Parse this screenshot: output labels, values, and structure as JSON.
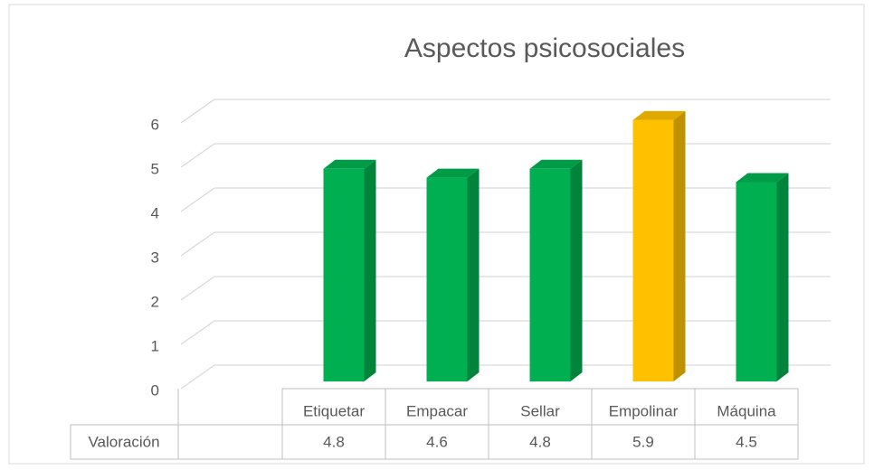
{
  "chart_data": {
    "type": "bar3d",
    "title": "Aspectos psicosociales",
    "categories": [
      "Etiquetar",
      "Empacar",
      "Sellar",
      "Empolinar",
      "Máquina"
    ],
    "series": [
      {
        "name": "Valoración",
        "values": [
          4.8,
          4.6,
          4.8,
          5.9,
          4.5
        ],
        "colors": [
          "#00b050",
          "#00b050",
          "#00b050",
          "#ffc000",
          "#00b050"
        ]
      }
    ],
    "ylim": [
      0,
      6
    ],
    "yticks": [
      0,
      1,
      2,
      3,
      4,
      5,
      6
    ],
    "grid": true,
    "data_table": true
  }
}
